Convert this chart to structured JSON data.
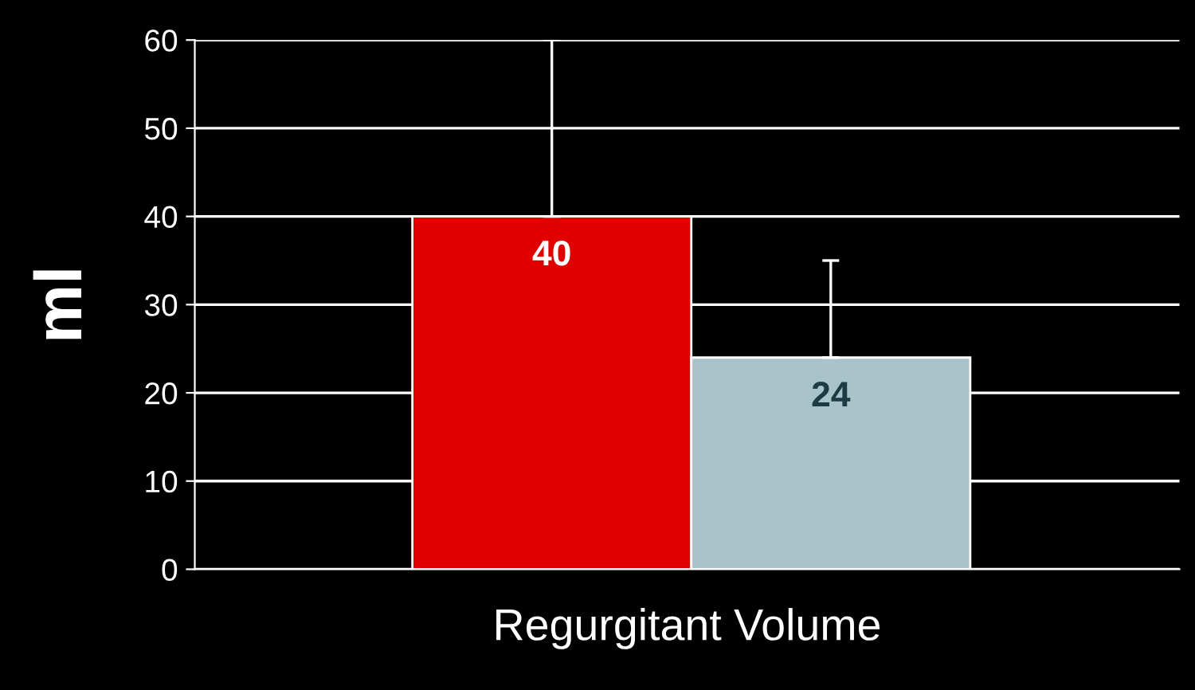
{
  "chart_data": {
    "type": "bar",
    "xlabel": "Regurgitant Volume",
    "ylabel": "ml",
    "categories": [
      null,
      null
    ],
    "values": [
      40,
      24
    ],
    "colors": [
      "#e00000",
      "#a9c4c8"
    ],
    "errors": [
      [
        40,
        60
      ],
      [
        24,
        35
      ]
    ],
    "data_labels": true,
    "ylim": [
      0,
      60
    ],
    "yticks": [
      0,
      10,
      20,
      30,
      40,
      50,
      60
    ],
    "grid": "y",
    "legend": false
  }
}
